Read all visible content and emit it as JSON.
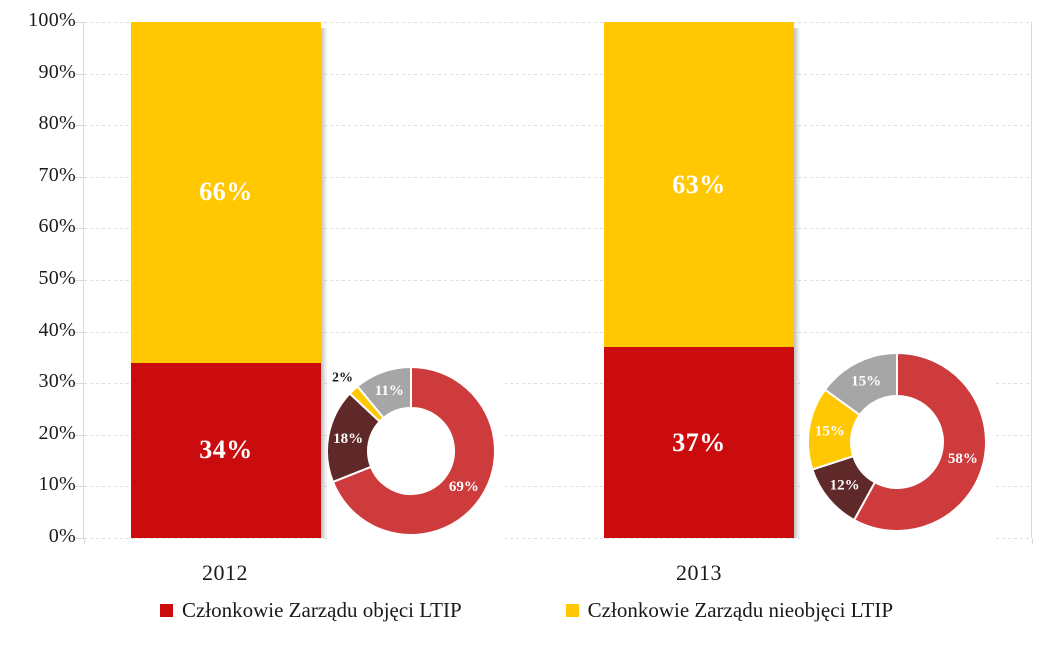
{
  "chart_data": {
    "type": "bar",
    "subtype": "stacked-percent-with-donut-insets",
    "title": "",
    "categories": [
      "2012",
      "2013"
    ],
    "series": [
      {
        "name": "Członkowie Zarządu objęci LTIP",
        "color": "#CB0C0F",
        "values": [
          34,
          37
        ],
        "value_labels": [
          "34%",
          "37%"
        ]
      },
      {
        "name": "Członkowie Zarządu nieobjęci LTIP",
        "color": "#FFC803",
        "values": [
          66,
          63
        ],
        "value_labels": [
          "66%",
          "63%"
        ]
      }
    ],
    "xlabel": "",
    "ylabel": "",
    "ylim": [
      0,
      100
    ],
    "y_ticks": [
      "0%",
      "10%",
      "20%",
      "30%",
      "40%",
      "50%",
      "60%",
      "70%",
      "80%",
      "90%",
      "100%"
    ],
    "grid": "horizontal-dashed",
    "legend_position": "bottom",
    "donut_charts": [
      {
        "category": "2012",
        "type": "donut",
        "slices": [
          {
            "label": "69%",
            "value": 69,
            "color": "#CE3B3C",
            "label_color": "#FFFFFF",
            "label_outside": false
          },
          {
            "label": "18%",
            "value": 18,
            "color": "#5E2928",
            "label_color": "#FFFFFF",
            "label_outside": false
          },
          {
            "label": "2%",
            "value": 2,
            "color": "#FFC803",
            "label_color": "#1A1A1A",
            "label_outside": true
          },
          {
            "label": "11%",
            "value": 11,
            "color": "#A6A6A6",
            "label_color": "#FFFFFF",
            "label_outside": false
          }
        ]
      },
      {
        "category": "2013",
        "type": "donut",
        "slices": [
          {
            "label": "58%",
            "value": 58,
            "color": "#CE3B3C",
            "label_color": "#FFFFFF",
            "label_outside": false
          },
          {
            "label": "12%",
            "value": 12,
            "color": "#5E2928",
            "label_color": "#FFFFFF",
            "label_outside": false
          },
          {
            "label": "15%",
            "value": 15,
            "color": "#FFC803",
            "label_color": "#FFFFFF",
            "label_outside": false
          },
          {
            "label": "15%",
            "value": 15,
            "color": "#A6A6A6",
            "label_color": "#FFFFFF",
            "label_outside": false
          }
        ]
      }
    ],
    "colors": {
      "bar_red": "#CB0C0F",
      "bar_yellow": "#FFC803",
      "donut_red": "#CE3B3C",
      "donut_brown": "#5E2928",
      "donut_yellow": "#FFC803",
      "donut_gray": "#A6A6A6",
      "grid": "#DEDEDE",
      "axis_text": "#1A1A1A"
    }
  }
}
